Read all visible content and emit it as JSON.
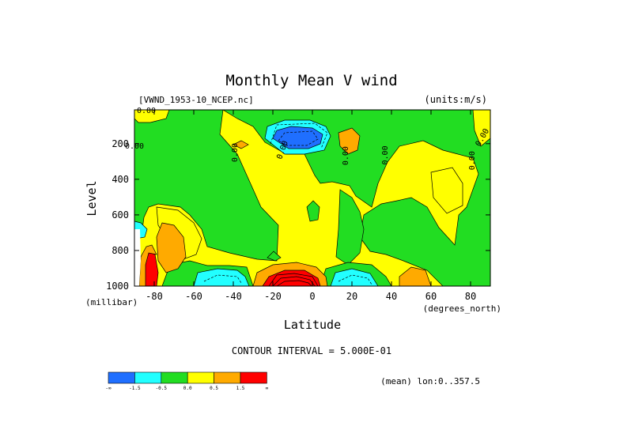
{
  "chart_data": {
    "type": "heatmap",
    "title": "Monthly Mean V wind",
    "subtitle": "[VWND_1953-10_NCEP.nc]",
    "units": "(units:m/s)",
    "xlabel": "Latitude",
    "ylabel": "Level",
    "x_unit": "(degrees_north)",
    "y_unit": "(millibar)",
    "x_range": [
      -90,
      90
    ],
    "y_range": [
      1000,
      10
    ],
    "x_ticks": [
      "-80",
      "-60",
      "-40",
      "-20",
      "0",
      "20",
      "40",
      "60",
      "80"
    ],
    "y_ticks": [
      "200",
      "400",
      "600",
      "800",
      "1000"
    ],
    "contour_interval": "CONTOUR INTERVAL = 5.000E-01",
    "footnote": "(mean) lon:0..357.5",
    "contour_labels": [
      "0.00",
      "0.00",
      "0.00",
      "0.00",
      "0.00",
      "0.00",
      "0.00",
      "0.00"
    ],
    "colorbar": {
      "colors": [
        "#1f6fff",
        "#22ffff",
        "#22dd22",
        "#ffff00",
        "#ffaa00",
        "#ff0000"
      ],
      "labels": [
        "-∞",
        "-1.5",
        "-0.5",
        "0.0",
        "0.5",
        "1.5",
        "∞"
      ]
    }
  }
}
